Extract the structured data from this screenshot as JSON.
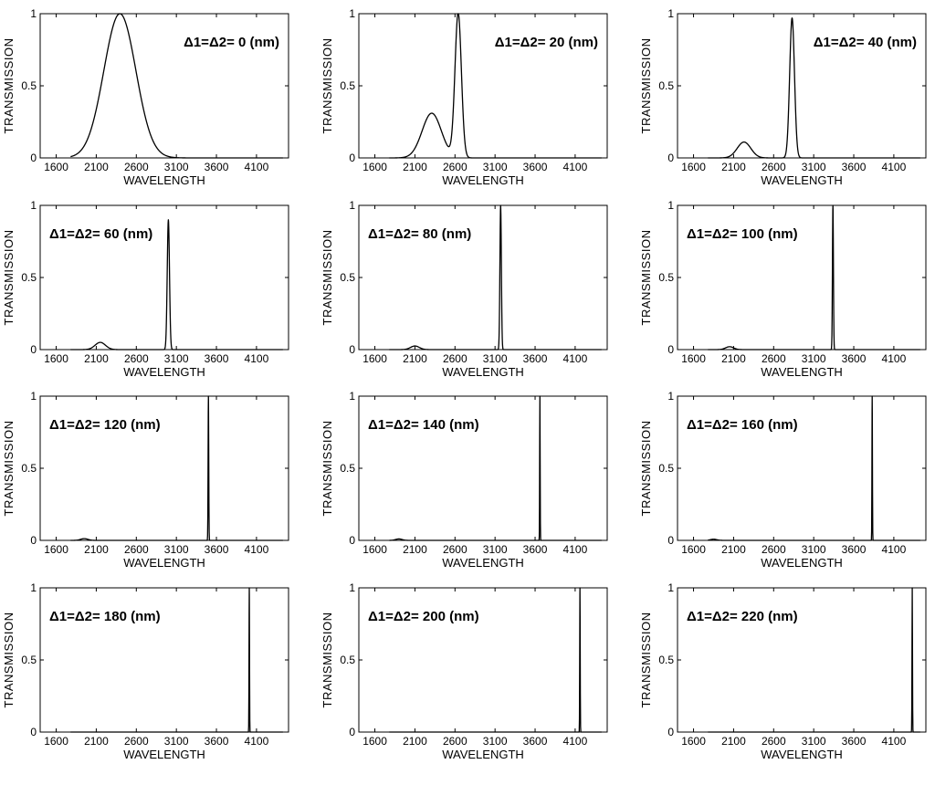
{
  "chart_data": [
    {
      "type": "line",
      "annotation": "Δ1=Δ2= 0 (nm)",
      "xlabel": "WAVELENGTH",
      "ylabel": "TRANSMISSION",
      "xlim": [
        1400,
        4500
      ],
      "ylim": [
        0,
        1
      ],
      "xticks": [
        1600,
        2100,
        2600,
        3100,
        3600,
        4100
      ],
      "yticks": [
        0,
        0.5,
        1
      ],
      "ytick_labels": [
        "0",
        "0.5",
        "1"
      ],
      "label_pos": "top-right",
      "peaks": [
        {
          "center": 2395,
          "width": 200,
          "height": 1.0
        }
      ]
    },
    {
      "type": "line",
      "annotation": "Δ1=Δ2= 20 (nm)",
      "xlabel": "WAVELENGTH",
      "ylabel": "TRANSMISSION",
      "xlim": [
        1400,
        4500
      ],
      "ylim": [
        0,
        1
      ],
      "xticks": [
        1600,
        2100,
        2600,
        3100,
        3600,
        4100
      ],
      "yticks": [
        0,
        0.5,
        1
      ],
      "ytick_labels": [
        "0",
        "0.5",
        "1"
      ],
      "label_pos": "top-right",
      "peaks": [
        {
          "center": 2310,
          "width": 120,
          "height": 0.31
        },
        {
          "center": 2640,
          "width": 40,
          "height": 1.0
        }
      ],
      "notes": "broad hump ~0.33 near 2300, dip ~0.18 near 2480, sharp peak 1.0 near 2640"
    },
    {
      "type": "line",
      "annotation": "Δ1=Δ2= 40 (nm)",
      "xlabel": "WAVELENGTH",
      "ylabel": "TRANSMISSION",
      "xlim": [
        1400,
        4500
      ],
      "ylim": [
        0,
        1
      ],
      "xticks": [
        1600,
        2100,
        2600,
        3100,
        3600,
        4100
      ],
      "yticks": [
        0,
        0.5,
        1
      ],
      "ytick_labels": [
        "0",
        "0.5",
        "1"
      ],
      "label_pos": "top-right",
      "peaks": [
        {
          "center": 2230,
          "width": 85,
          "height": 0.11
        },
        {
          "center": 2830,
          "width": 30,
          "height": 0.97
        }
      ]
    },
    {
      "type": "line",
      "annotation": "Δ1=Δ2= 60 (nm)",
      "xlabel": "WAVELENGTH",
      "ylabel": "TRANSMISSION",
      "xlim": [
        1400,
        4500
      ],
      "ylim": [
        0,
        1
      ],
      "xticks": [
        1600,
        2100,
        2600,
        3100,
        3600,
        4100
      ],
      "yticks": [
        0,
        0.5,
        1
      ],
      "ytick_labels": [
        "0",
        "0.5",
        "1"
      ],
      "label_pos": "top-left",
      "peaks": [
        {
          "center": 2150,
          "width": 65,
          "height": 0.05
        },
        {
          "center": 3000,
          "width": 14,
          "height": 0.9
        }
      ]
    },
    {
      "type": "line",
      "annotation": "Δ1=Δ2= 80 (nm)",
      "xlabel": "WAVELENGTH",
      "ylabel": "TRANSMISSION",
      "xlim": [
        1400,
        4500
      ],
      "ylim": [
        0,
        1
      ],
      "xticks": [
        1600,
        2100,
        2600,
        3100,
        3600,
        4100
      ],
      "yticks": [
        0,
        0.5,
        1
      ],
      "ytick_labels": [
        "0",
        "0.5",
        "1"
      ],
      "label_pos": "top-left",
      "peaks": [
        {
          "center": 2100,
          "width": 55,
          "height": 0.025
        },
        {
          "center": 3170,
          "width": 9,
          "height": 1.0
        }
      ]
    },
    {
      "type": "line",
      "annotation": "Δ1=Δ2= 100 (nm)",
      "xlabel": "WAVELENGTH",
      "ylabel": "TRANSMISSION",
      "xlim": [
        1400,
        4500
      ],
      "ylim": [
        0,
        1
      ],
      "xticks": [
        1600,
        2100,
        2600,
        3100,
        3600,
        4100
      ],
      "yticks": [
        0,
        0.5,
        1
      ],
      "ytick_labels": [
        "0",
        "0.5",
        "1"
      ],
      "label_pos": "top-left",
      "peaks": [
        {
          "center": 2050,
          "width": 50,
          "height": 0.02
        },
        {
          "center": 3340,
          "width": 6,
          "height": 1.0
        }
      ]
    },
    {
      "type": "line",
      "annotation": "Δ1=Δ2= 120 (nm)",
      "xlabel": "WAVELENGTH",
      "ylabel": "TRANSMISSION",
      "xlim": [
        1400,
        4500
      ],
      "ylim": [
        0,
        1
      ],
      "xticks": [
        1600,
        2100,
        2600,
        3100,
        3600,
        4100
      ],
      "yticks": [
        0,
        0.5,
        1
      ],
      "ytick_labels": [
        "0",
        "0.5",
        "1"
      ],
      "label_pos": "top-left",
      "peaks": [
        {
          "center": 1950,
          "width": 45,
          "height": 0.012
        },
        {
          "center": 3500,
          "width": 4,
          "height": 1.0
        }
      ]
    },
    {
      "type": "line",
      "annotation": "Δ1=Δ2= 140 (nm)",
      "xlabel": "WAVELENGTH",
      "ylabel": "TRANSMISSION",
      "xlim": [
        1400,
        4500
      ],
      "ylim": [
        0,
        1
      ],
      "xticks": [
        1600,
        2100,
        2600,
        3100,
        3600,
        4100
      ],
      "yticks": [
        0,
        0.5,
        1
      ],
      "ytick_labels": [
        "0",
        "0.5",
        "1"
      ],
      "label_pos": "top-left",
      "peaks": [
        {
          "center": 1900,
          "width": 40,
          "height": 0.01
        },
        {
          "center": 3660,
          "width": 3,
          "height": 1.0
        }
      ]
    },
    {
      "type": "line",
      "annotation": "Δ1=Δ2= 160 (nm)",
      "xlabel": "WAVELENGTH",
      "ylabel": "TRANSMISSION",
      "xlim": [
        1400,
        4500
      ],
      "ylim": [
        0,
        1
      ],
      "xticks": [
        1600,
        2100,
        2600,
        3100,
        3600,
        4100
      ],
      "yticks": [
        0,
        0.5,
        1
      ],
      "ytick_labels": [
        "0",
        "0.5",
        "1"
      ],
      "label_pos": "top-left",
      "peaks": [
        {
          "center": 1850,
          "width": 40,
          "height": 0.008
        },
        {
          "center": 3830,
          "width": 3,
          "height": 1.0
        }
      ]
    },
    {
      "type": "line",
      "annotation": "Δ1=Δ2= 180 (nm)",
      "xlabel": "WAVELENGTH",
      "ylabel": "TRANSMISSION",
      "xlim": [
        1400,
        4500
      ],
      "ylim": [
        0,
        1
      ],
      "xticks": [
        1600,
        2100,
        2600,
        3100,
        3600,
        4100
      ],
      "yticks": [
        0,
        0.5,
        1
      ],
      "ytick_labels": [
        "0",
        "0.5",
        "1"
      ],
      "label_pos": "top-left",
      "peaks": [
        {
          "center": 4010,
          "width": 3,
          "height": 1.0
        }
      ]
    },
    {
      "type": "line",
      "annotation": "Δ1=Δ2= 200 (nm)",
      "xlabel": "WAVELENGTH",
      "ylabel": "TRANSMISSION",
      "xlim": [
        1400,
        4500
      ],
      "ylim": [
        0,
        1
      ],
      "xticks": [
        1600,
        2100,
        2600,
        3100,
        3600,
        4100
      ],
      "yticks": [
        0,
        0.5,
        1
      ],
      "ytick_labels": [
        "0",
        "0.5",
        "1"
      ],
      "label_pos": "top-left",
      "peaks": [
        {
          "center": 4160,
          "width": 3,
          "height": 1.0
        }
      ]
    },
    {
      "type": "line",
      "annotation": "Δ1=Δ2= 220 (nm)",
      "xlabel": "WAVELENGTH",
      "ylabel": "TRANSMISSION",
      "xlim": [
        1400,
        4500
      ],
      "ylim": [
        0,
        1
      ],
      "xticks": [
        1600,
        2100,
        2600,
        3100,
        3600,
        4100
      ],
      "yticks": [
        0,
        0.5,
        1
      ],
      "ytick_labels": [
        "0",
        "0.5",
        "1"
      ],
      "label_pos": "top-left",
      "peaks": [
        {
          "center": 4330,
          "width": 3,
          "height": 1.0
        }
      ]
    }
  ],
  "colors": {
    "background": "#ffffff",
    "axes": "#000000",
    "line": "#000000"
  }
}
